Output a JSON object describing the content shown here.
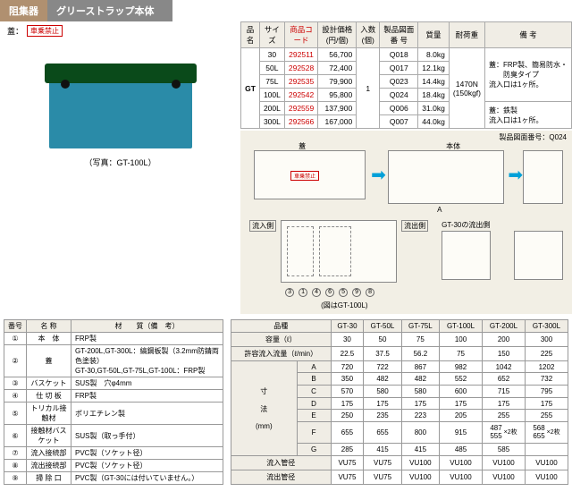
{
  "header": {
    "category": "阻集器",
    "title": "グリーストラップ本体"
  },
  "lid": {
    "label": "蓋：",
    "tag": "車乗禁止"
  },
  "top_table": {
    "headers": [
      "品名",
      "サイズ",
      "商品コード",
      "設計価格\n(円/個)",
      "入数\n(個)",
      "製品図面\n番 号",
      "質量",
      "耐荷重",
      "備 考"
    ],
    "name": "GT",
    "rows": [
      {
        "size": "30",
        "code": "292511",
        "price": "56,700",
        "draw": "Q018",
        "mass": "8.0kg"
      },
      {
        "size": "50L",
        "code": "292528",
        "price": "72,400",
        "draw": "Q017",
        "mass": "12.1kg"
      },
      {
        "size": "75L",
        "code": "292535",
        "price": "79,900",
        "draw": "Q023",
        "mass": "14.4kg"
      },
      {
        "size": "100L",
        "code": "292542",
        "price": "95,800",
        "draw": "Q024",
        "mass": "18.4kg"
      },
      {
        "size": "200L",
        "code": "292559",
        "price": "137,900",
        "draw": "Q006",
        "mass": "31.0kg"
      },
      {
        "size": "300L",
        "code": "292566",
        "price": "167,000",
        "draw": "Q007",
        "mass": "44.0kg"
      }
    ],
    "qty": "1",
    "load": "1470N\n(150kgf)",
    "remarks1": "蓋：FRP製、簡易防水・\n　　防臭タイプ\n流入口は1ヶ所。",
    "remarks2": "蓋：鉄製\n流入口は1ヶ所。"
  },
  "photo_caption": "（写真：GT-100L）",
  "diagram": {
    "note": "製品図面番号：Q024",
    "lid_label": "蓋",
    "body_label": "本体",
    "inflow": "流入側",
    "outflow": "流出側",
    "gt30_out": "GT-30の流出側",
    "model": "(図はGT-100L)",
    "tag": "車乗禁止",
    "dims": [
      "A",
      "B",
      "C",
      "D",
      "E",
      "F",
      "G"
    ]
  },
  "parts_table": {
    "headers": [
      "番号",
      "名 称",
      "材　　質（備　考）"
    ],
    "rows": [
      {
        "no": "①",
        "name": "本　体",
        "mat": "FRP製"
      },
      {
        "no": "②",
        "name": "蓋",
        "mat": "GT-200L,GT-300L：縞鋼板製（3.2mm防錆両色塗装）\nGT-30,GT-50L,GT-75L,GT-100L：FRP製"
      },
      {
        "no": "③",
        "name": "バスケット",
        "mat": "SUS製　穴φ4mm"
      },
      {
        "no": "④",
        "name": "仕 切 板",
        "mat": "FRP製"
      },
      {
        "no": "⑤",
        "name": "トリカル接触材",
        "mat": "ポリエチレン製"
      },
      {
        "no": "⑥",
        "name": "接触材バスケット",
        "mat": "SUS製（取っ手付）"
      },
      {
        "no": "⑦",
        "name": "流入接続部",
        "mat": "PVC製（ソケット径）"
      },
      {
        "no": "⑧",
        "name": "流出接続部",
        "mat": "PVC製（ソケット径）"
      },
      {
        "no": "⑨",
        "name": "掃 除 口",
        "mat": "PVC製（GT-30には付いていません。）"
      }
    ]
  },
  "dim_table": {
    "header_model": "品種",
    "models": [
      "GT-30",
      "GT-50L",
      "GT-75L",
      "GT-100L",
      "GT-200L",
      "GT-300L"
    ],
    "capacity_label": "容量（ℓ）",
    "capacity": [
      "30",
      "50",
      "75",
      "100",
      "200",
      "300"
    ],
    "flow_label": "許容流入流量（ℓ/min）",
    "flow": [
      "22.5",
      "37.5",
      "56.2",
      "75",
      "150",
      "225"
    ],
    "dim_label": "寸\n\n法\n\n(mm)",
    "dims": [
      {
        "k": "A",
        "v": [
          "720",
          "722",
          "867",
          "982",
          "1042",
          "1202"
        ]
      },
      {
        "k": "B",
        "v": [
          "350",
          "482",
          "482",
          "552",
          "652",
          "732"
        ]
      },
      {
        "k": "C",
        "v": [
          "570",
          "580",
          "580",
          "600",
          "715",
          "795"
        ]
      },
      {
        "k": "D",
        "v": [
          "175",
          "175",
          "175",
          "175",
          "175",
          "175"
        ]
      },
      {
        "k": "E",
        "v": [
          "250",
          "235",
          "223",
          "205",
          "255",
          "255"
        ]
      },
      {
        "k": "F",
        "v": [
          "655",
          "655",
          "800",
          "915",
          "487\n555",
          "568\n655"
        ]
      },
      {
        "k": "G",
        "v": [
          "285",
          "415",
          "415",
          "485",
          "585",
          ""
        ]
      }
    ],
    "x2": "×2枚",
    "inflow_label": "流入管径",
    "inflow": [
      "VU75",
      "VU75",
      "VU100",
      "VU100",
      "VU100",
      "VU100"
    ],
    "outflow_label": "流出管径",
    "outflow": [
      "VU75",
      "VU75",
      "VU100",
      "VU100",
      "VU100",
      "VU100"
    ]
  }
}
